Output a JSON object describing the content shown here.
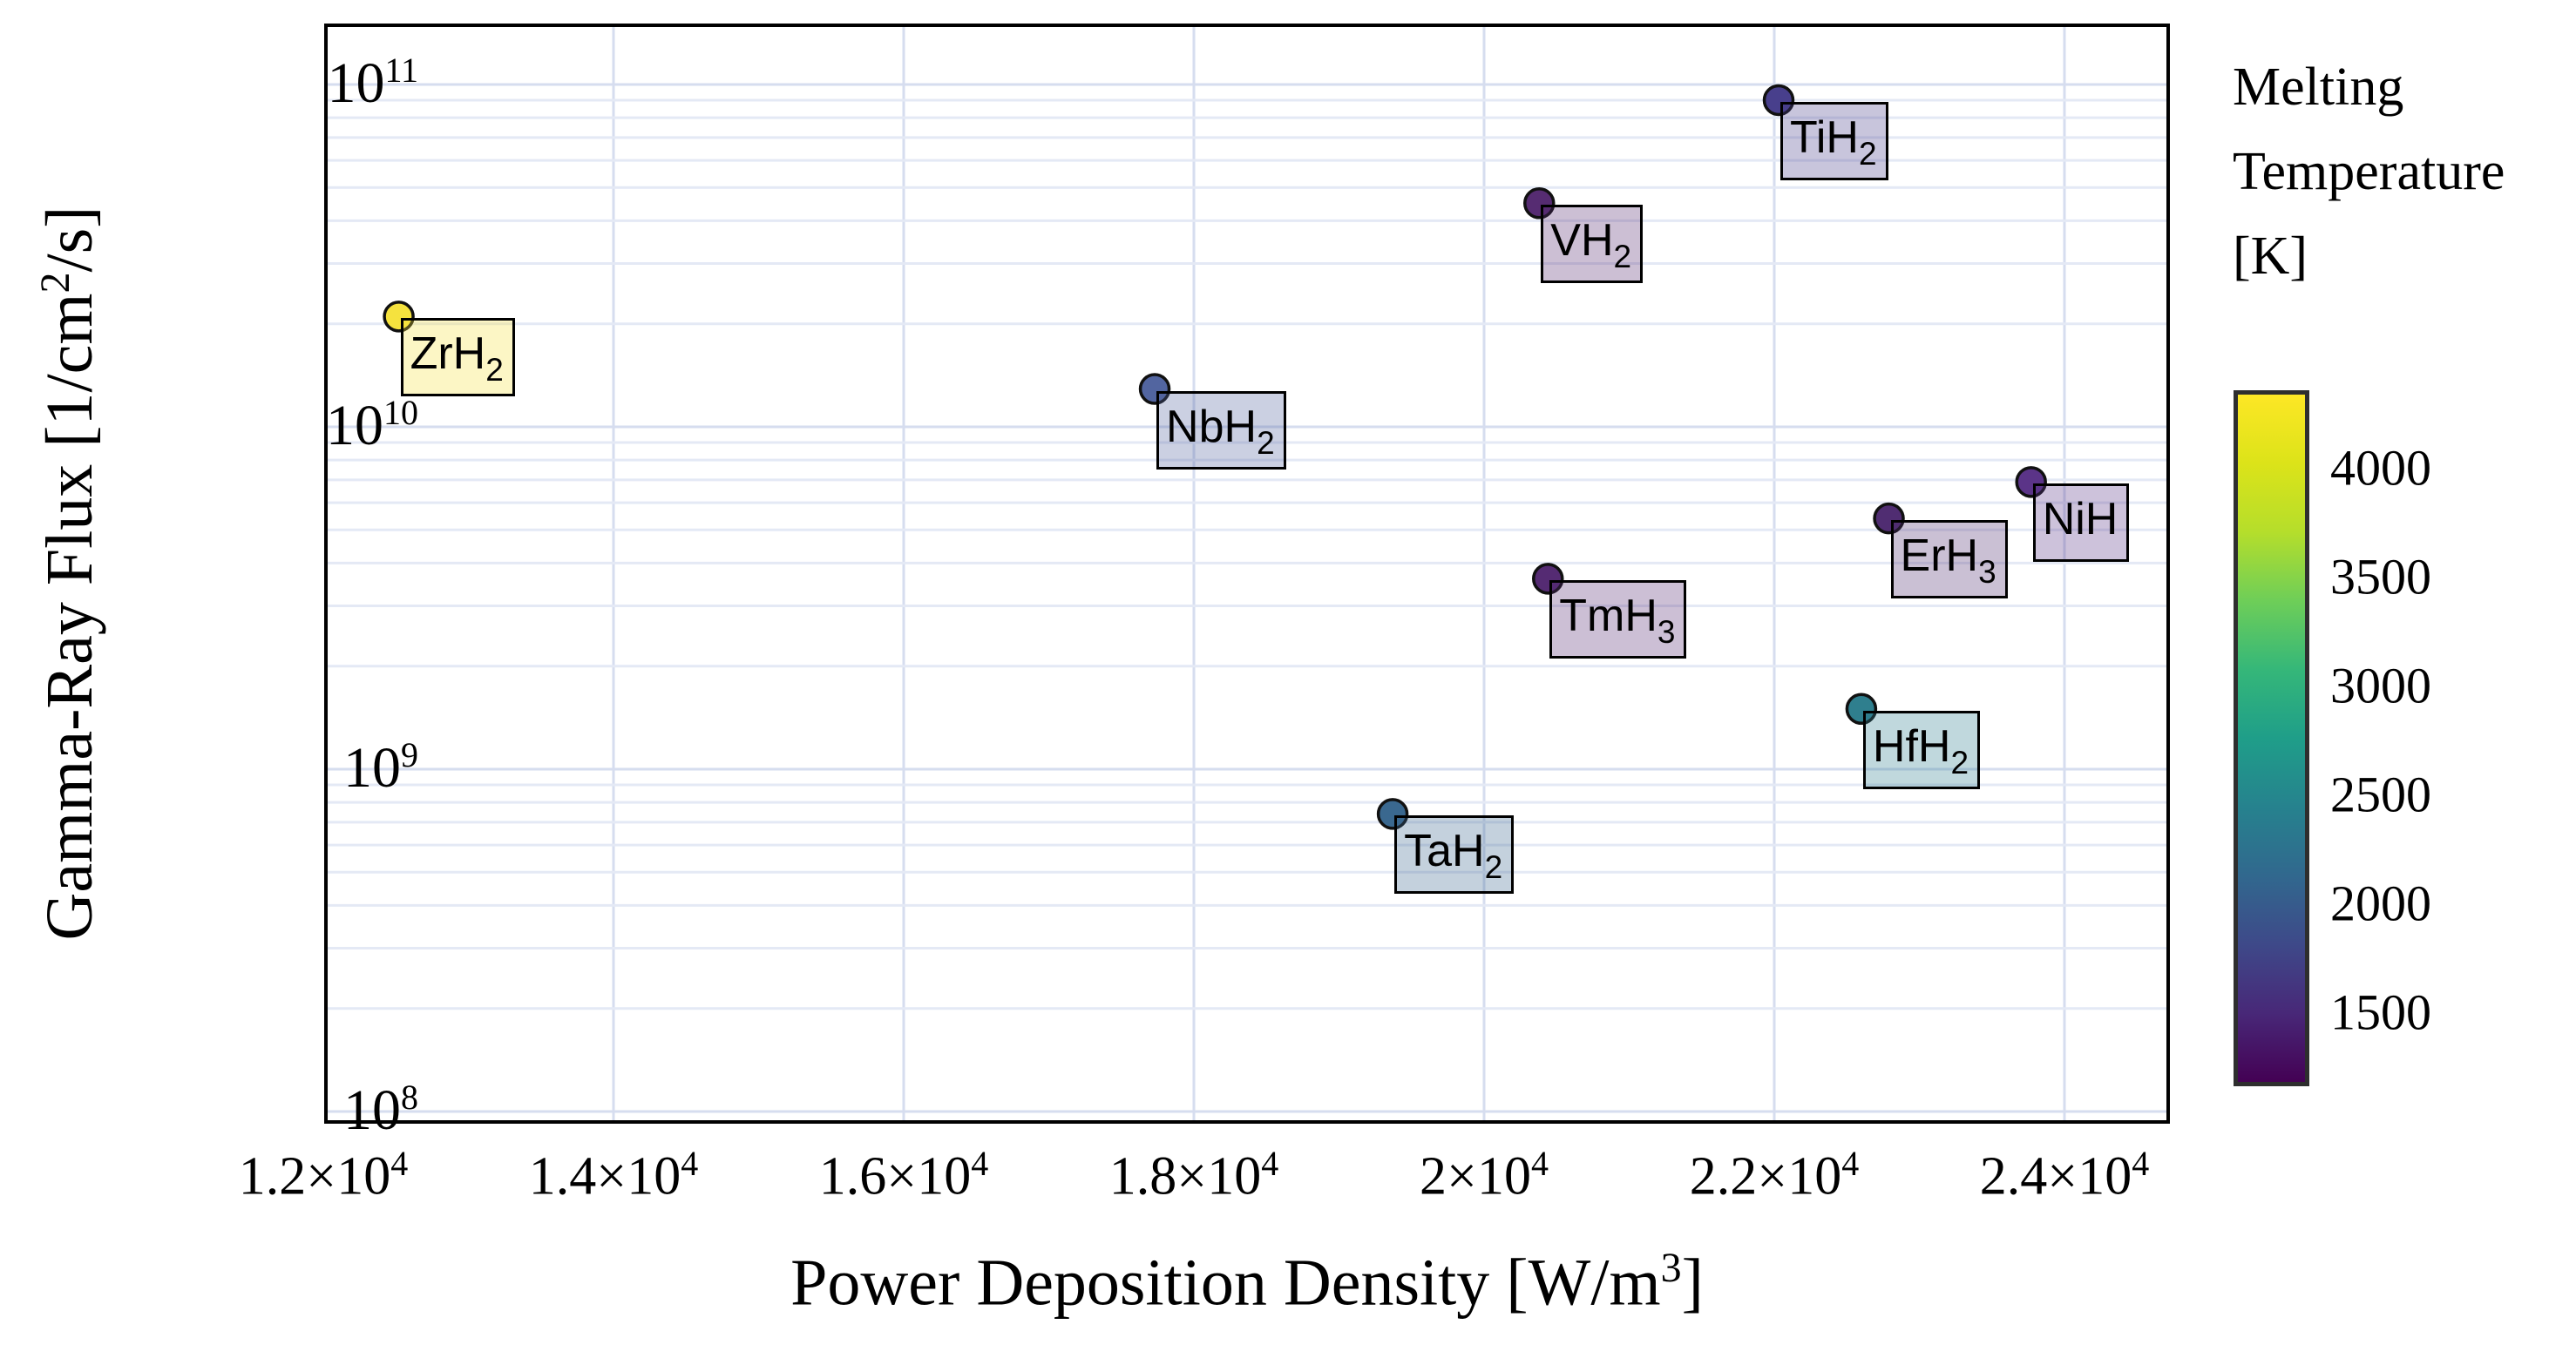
{
  "chart_data": {
    "type": "scatter",
    "xlabel_parts": [
      "Power Deposition Density [W/m",
      "3",
      "]"
    ],
    "ylabel_parts": [
      "Gamma-Ray Flux [1/cm",
      "2",
      "/s]"
    ],
    "x_scale": "linear",
    "y_scale": "log",
    "xlim": [
      11990,
      24730
    ],
    "ylim": [
      92000000.0,
      151000000000.0
    ],
    "grid": true,
    "x_ticks": [
      {
        "mantissa": "1.2×10",
        "exp": "4",
        "value": 12000
      },
      {
        "mantissa": "1.4×10",
        "exp": "4",
        "value": 14000
      },
      {
        "mantissa": "1.6×10",
        "exp": "4",
        "value": 16000
      },
      {
        "mantissa": "1.8×10",
        "exp": "4",
        "value": 18000
      },
      {
        "mantissa": "2×10",
        "exp": "4",
        "value": 20000
      },
      {
        "mantissa": "2.2×10",
        "exp": "4",
        "value": 22000
      },
      {
        "mantissa": "2.4×10",
        "exp": "4",
        "value": 24000
      }
    ],
    "y_ticks": [
      {
        "mantissa": "10",
        "exp": "8",
        "value": 100000000.0
      },
      {
        "mantissa": "10",
        "exp": "9",
        "value": 1000000000.0
      },
      {
        "mantissa": "10",
        "exp": "10",
        "value": 10000000000.0
      },
      {
        "mantissa": "10",
        "exp": "11",
        "value": 100000000000.0
      }
    ],
    "points": [
      {
        "label": "ZrH2",
        "label_main": "ZrH",
        "label_sub": "2",
        "x": 12520,
        "y": 21000000000.0,
        "color": "#f5e23e",
        "melting_temperature_K_approx": 4250
      },
      {
        "label": "NbH2",
        "label_main": "NbH",
        "label_sub": "2",
        "x": 17730,
        "y": 12900000000.0,
        "color": "#5265a0",
        "melting_temperature_K_approx": 2050
      },
      {
        "label": "TiH2",
        "label_main": "TiH",
        "label_sub": "2",
        "x": 22030,
        "y": 90000000000.0,
        "color": "#483f8c",
        "melting_temperature_K_approx": 1700
      },
      {
        "label": "VH2",
        "label_main": "VH",
        "label_sub": "2",
        "x": 20380,
        "y": 45000000000.0,
        "color": "#562c72",
        "melting_temperature_K_approx": 1420
      },
      {
        "label": "NiH",
        "label_main": "NiH",
        "label_sub": "",
        "x": 23770,
        "y": 6900000000.0,
        "color": "#5b3488",
        "melting_temperature_K_approx": 1500
      },
      {
        "label": "ErH3",
        "label_main": "ErH",
        "label_sub": "3",
        "x": 22790,
        "y": 5400000000.0,
        "color": "#502d72",
        "melting_temperature_K_approx": 1430
      },
      {
        "label": "TmH3",
        "label_main": "TmH",
        "label_sub": "3",
        "x": 20440,
        "y": 3600000000.0,
        "color": "#552b73",
        "melting_temperature_K_approx": 1440
      },
      {
        "label": "HfH2",
        "label_main": "HfH",
        "label_sub": "2",
        "x": 22600,
        "y": 1500000000.0,
        "color": "#2f7f8e",
        "melting_temperature_K_approx": 2500
      },
      {
        "label": "TaH2",
        "label_main": "TaH",
        "label_sub": "2",
        "x": 19370,
        "y": 740000000.0,
        "color": "#3a688f",
        "melting_temperature_K_approx": 2200
      }
    ],
    "colorbar": {
      "title_lines": [
        "Melting",
        "Temperature",
        "[K]"
      ],
      "tick_labels": [
        "4000",
        "3500",
        "3000",
        "2500",
        "2000",
        "1500"
      ],
      "tick_values": [
        4000,
        3500,
        3000,
        2500,
        2000,
        1500
      ],
      "value_range": [
        1160,
        4356
      ],
      "colormap": "viridis",
      "stops_top_to_bottom": [
        "#fde725",
        "#dce319",
        "#b5de2b",
        "#6ece58",
        "#35b779",
        "#1f9e89",
        "#26828e",
        "#31688e",
        "#3e4989",
        "#482878",
        "#440154"
      ]
    },
    "style_colors": {
      "grid_major": "#d6ddef",
      "grid_minor": "#e4e9f5",
      "frame": "#000000",
      "marker_edge": "#111111",
      "background": "#ffffff"
    }
  }
}
